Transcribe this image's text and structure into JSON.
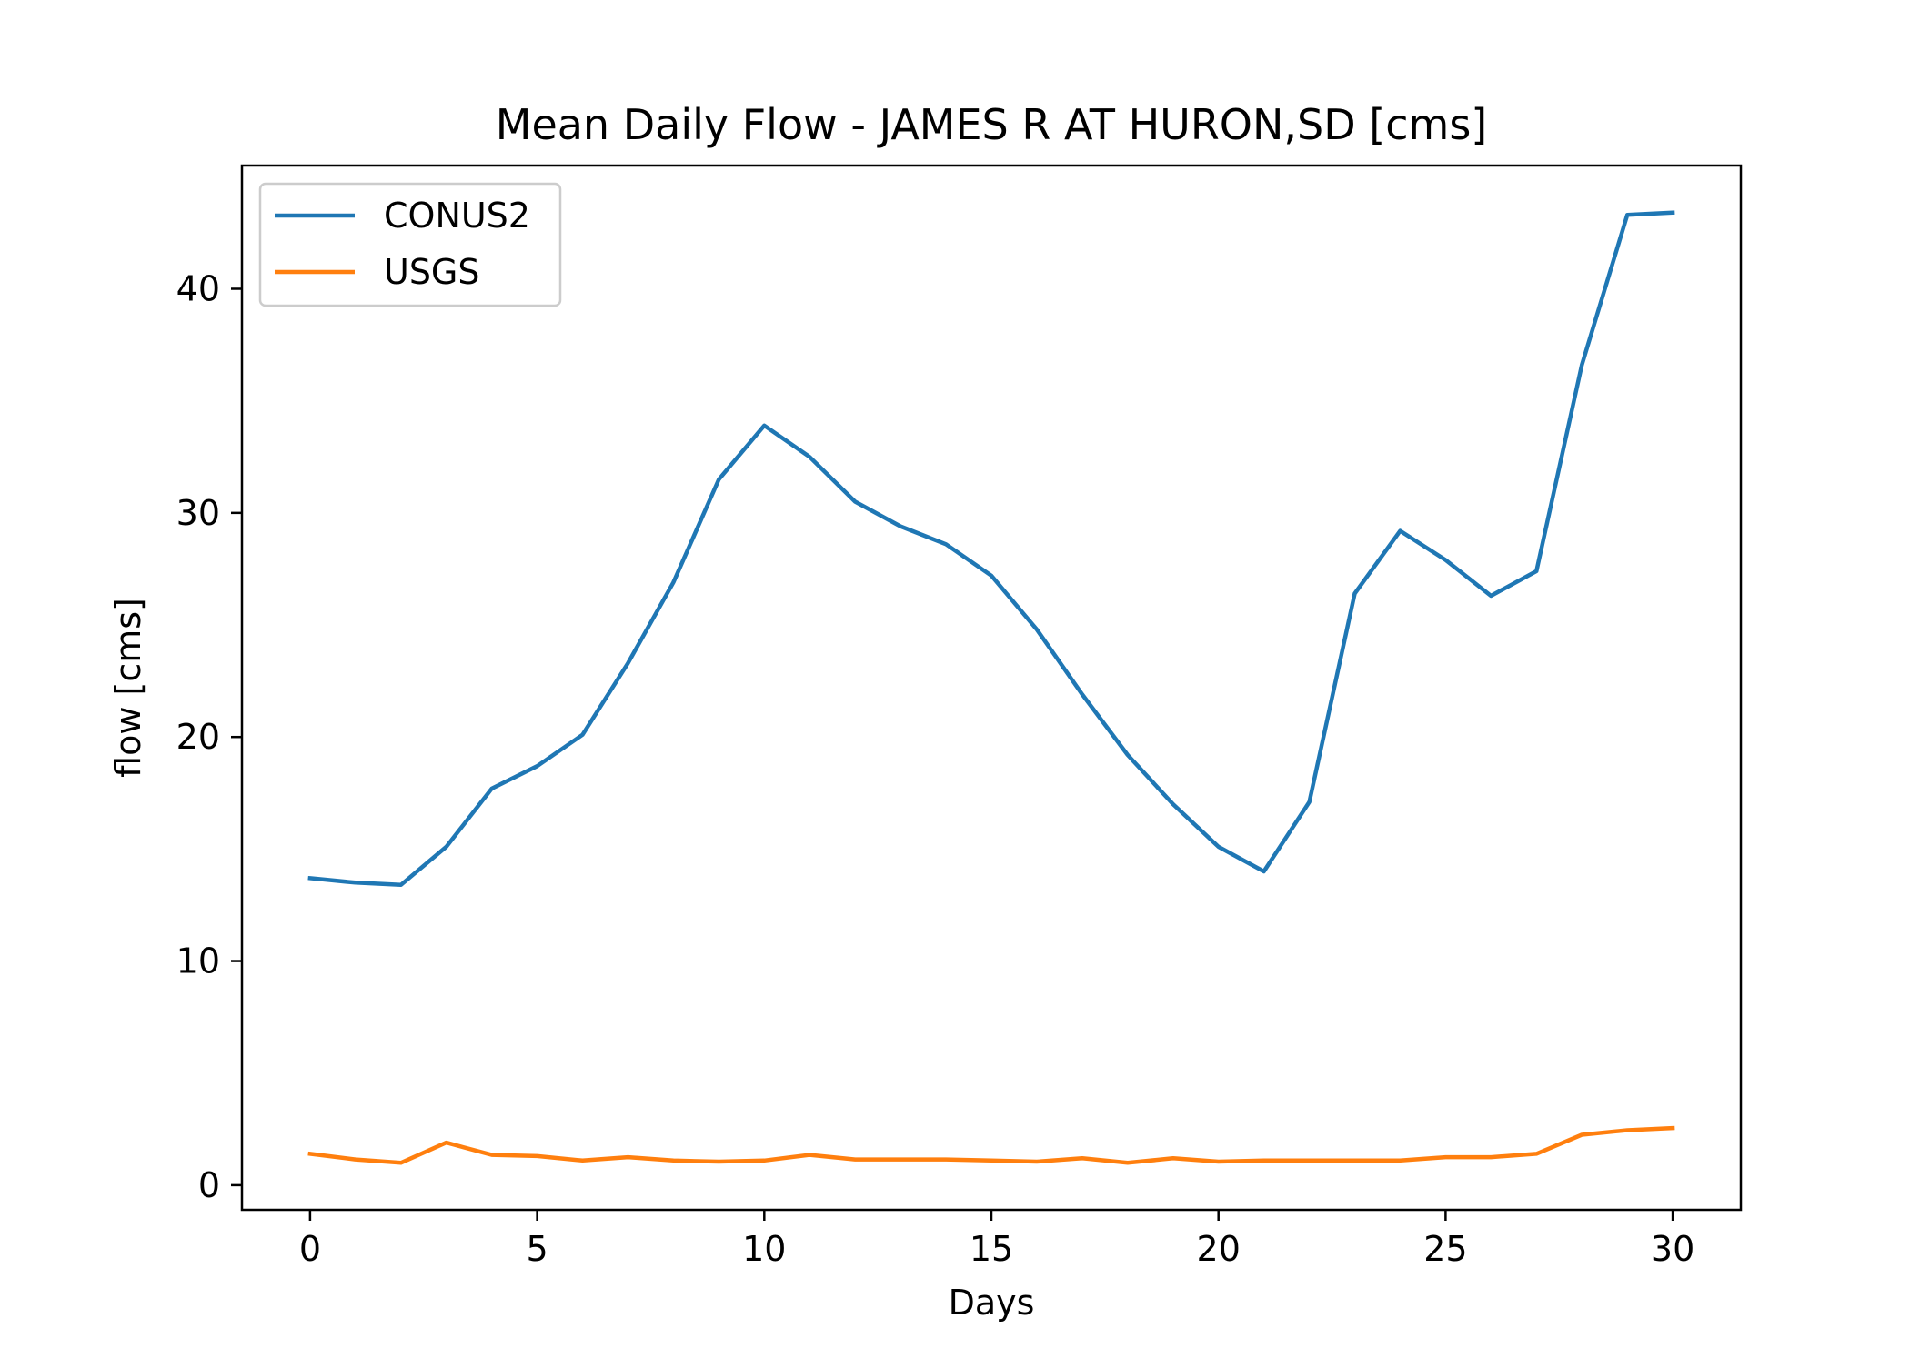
{
  "chart_data": {
    "type": "line",
    "title": "Mean Daily Flow - JAMES R AT HURON,SD [cms]",
    "xlabel": "Days",
    "ylabel": "flow [cms]",
    "xlim": [
      -1.5,
      31.5
    ],
    "ylim": [
      -1.1,
      45.5
    ],
    "grid": false,
    "legend_position": "upper-left",
    "x_ticks": [
      0,
      5,
      10,
      15,
      20,
      25,
      30
    ],
    "y_ticks": [
      0,
      10,
      20,
      30,
      40
    ],
    "x": [
      0,
      1,
      2,
      3,
      4,
      5,
      6,
      7,
      8,
      9,
      10,
      11,
      12,
      13,
      14,
      15,
      16,
      17,
      18,
      19,
      20,
      21,
      22,
      23,
      24,
      25,
      26,
      27,
      28,
      29,
      30
    ],
    "series": [
      {
        "name": "CONUS2",
        "color": "#1f77b4",
        "values": [
          13.7,
          13.5,
          13.4,
          15.1,
          17.7,
          18.7,
          20.1,
          23.3,
          26.9,
          31.5,
          33.9,
          32.5,
          30.5,
          29.4,
          28.6,
          27.2,
          24.8,
          21.9,
          19.2,
          17.0,
          15.1,
          14.0,
          17.1,
          26.4,
          29.2,
          27.9,
          26.3,
          27.4,
          36.6,
          43.3,
          43.4
        ]
      },
      {
        "name": "USGS",
        "color": "#ff7f0e",
        "values": [
          1.4,
          1.15,
          1.0,
          1.9,
          1.35,
          1.3,
          1.1,
          1.25,
          1.1,
          1.05,
          1.1,
          1.35,
          1.15,
          1.15,
          1.15,
          1.1,
          1.05,
          1.2,
          1.0,
          1.2,
          1.05,
          1.1,
          1.1,
          1.1,
          1.1,
          1.25,
          1.25,
          1.4,
          2.25,
          2.45,
          2.55
        ]
      }
    ]
  }
}
